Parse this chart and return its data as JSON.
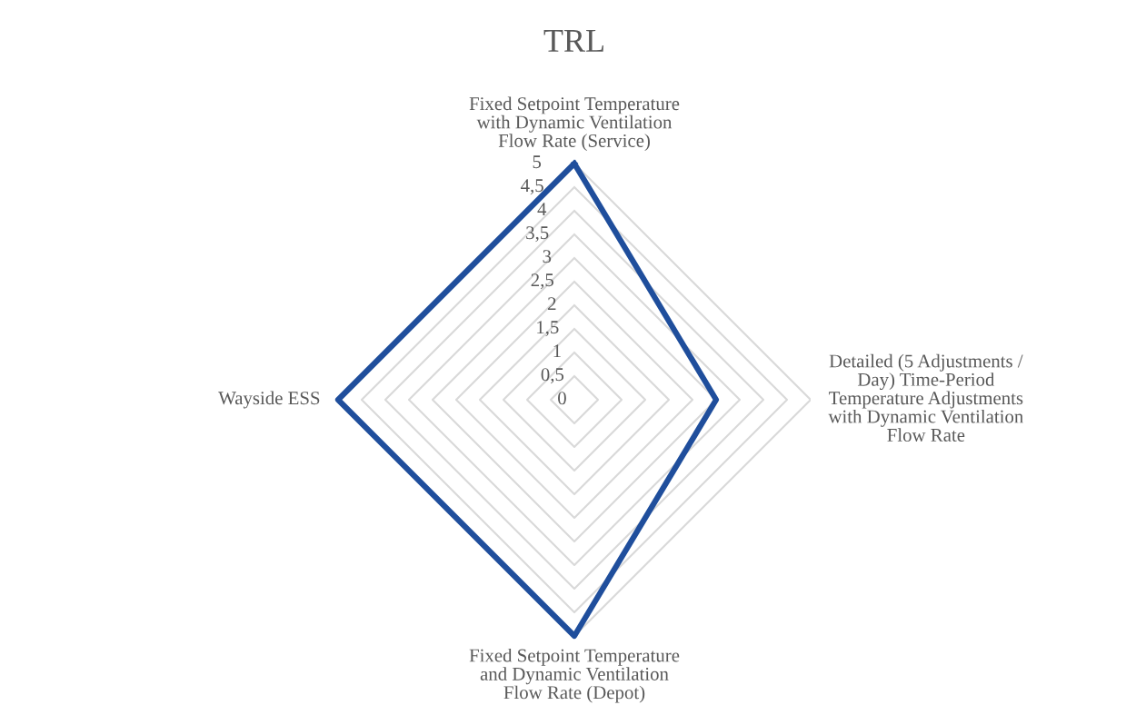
{
  "chart_data": {
    "type": "radar",
    "title": "TRL",
    "categories": [
      "Fixed Setpoint Temperature\nwith Dynamic Ventilation\nFlow Rate (Service)",
      "Detailed (5 Adjustments /\nDay) Time-Period\nTemperature Adjustments\nwith Dynamic Ventilation\nFlow Rate",
      "Fixed Setpoint Temperature\nand Dynamic Ventilation\nFlow Rate (Depot)",
      "Wayside ESS"
    ],
    "series": [
      {
        "color": "#1f4e9c",
        "values": [
          5,
          3,
          5,
          5
        ]
      }
    ],
    "ylim": [
      0,
      5
    ],
    "yticks": [
      0,
      {
        "value": 0.5,
        "label": "0,5"
      },
      1,
      {
        "value": 1.5,
        "label": "1,5"
      },
      2,
      {
        "value": 2.5,
        "label": "2,5"
      },
      3,
      {
        "value": 3.5,
        "label": "3,5"
      },
      4,
      {
        "value": 4.5,
        "label": "4,5"
      },
      5
    ],
    "grid": true
  }
}
